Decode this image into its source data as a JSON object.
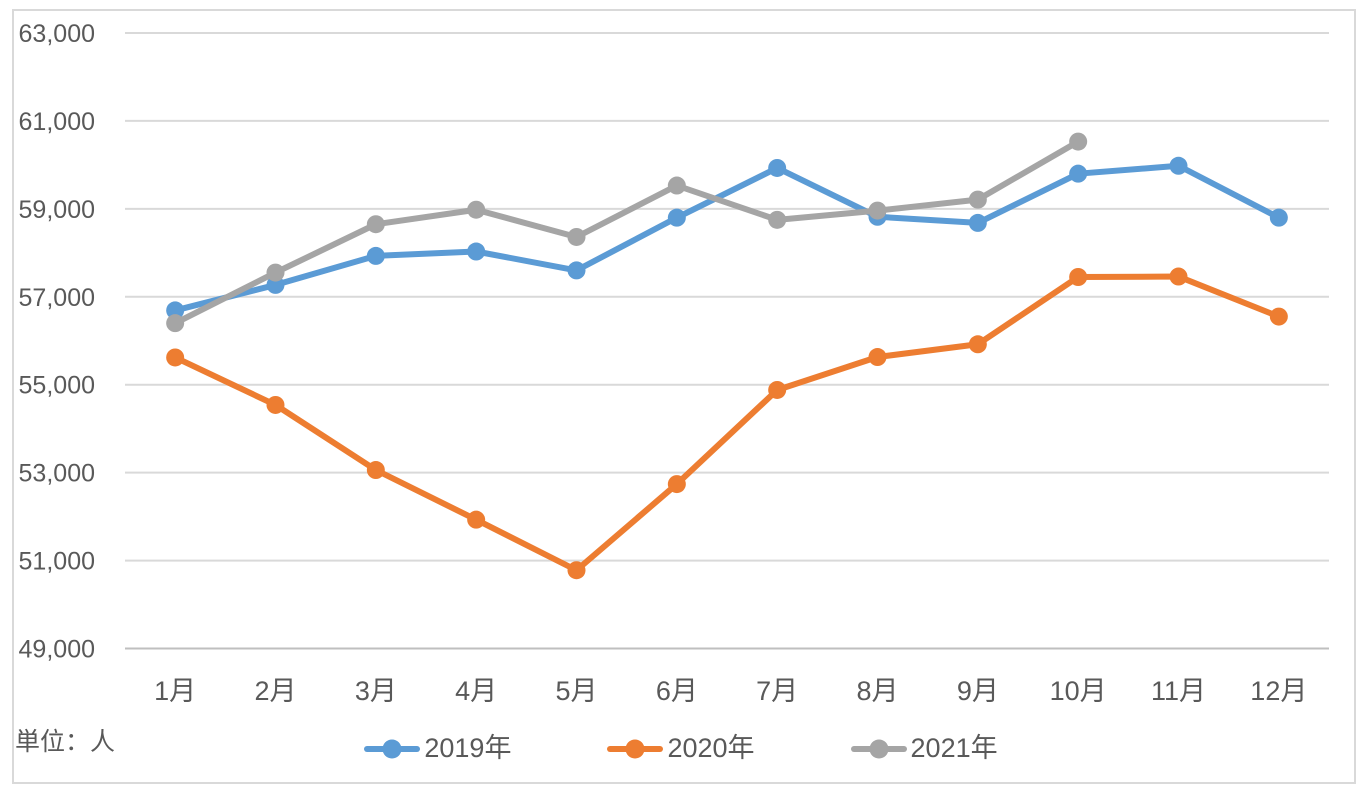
{
  "chart_data": {
    "type": "line",
    "title": "",
    "unit_label": "単位：人",
    "categories": [
      "1月",
      "2月",
      "3月",
      "4月",
      "5月",
      "6月",
      "7月",
      "8月",
      "9月",
      "10月",
      "11月",
      "12月"
    ],
    "series": [
      {
        "name": "2019年",
        "color": "#5B9BD5",
        "values": [
          56690,
          57270,
          57930,
          58030,
          57600,
          58800,
          59930,
          58820,
          58680,
          59800,
          59980,
          58800
        ]
      },
      {
        "name": "2020年",
        "color": "#ED7D31",
        "values": [
          55620,
          54540,
          53060,
          51930,
          50780,
          52740,
          54880,
          55630,
          55920,
          57450,
          57460,
          56550
        ]
      },
      {
        "name": "2021年",
        "color": "#A5A5A5",
        "values": [
          56400,
          57550,
          58650,
          58980,
          58360,
          59530,
          58750,
          58960,
          59210,
          60530,
          null,
          null
        ]
      }
    ],
    "ylim": [
      49000,
      63000
    ],
    "ytick_step": 2000,
    "yticks": [
      "49,000",
      "51,000",
      "53,000",
      "55,000",
      "57,000",
      "59,000",
      "61,000",
      "63,000"
    ],
    "grid": true,
    "legend_position": "bottom",
    "colors": {
      "gridline": "#D9D9D9",
      "axis_line": "#BFBFBF",
      "text": "#595959",
      "border": "#D9D9D9",
      "background": "#FFFFFF"
    }
  }
}
